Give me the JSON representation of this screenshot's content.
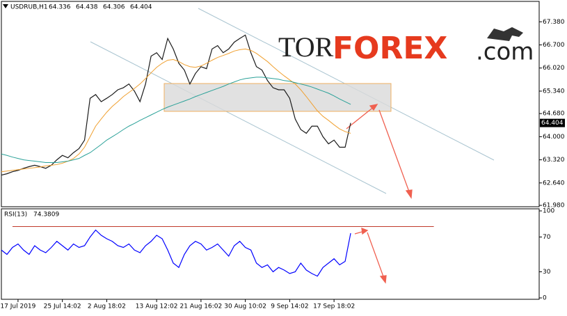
{
  "chart_data": [
    {
      "type": "line",
      "title": "USDRUB,H1",
      "header_values": [
        64.336,
        64.438,
        64.306,
        64.404
      ],
      "logo": [
        "TOR",
        "FOREX",
        ".com"
      ],
      "xlim": [
        0,
        97
      ],
      "ylim": [
        61.94,
        67.98
      ],
      "yticks": [
        {
          "value": 67.38,
          "label": "67.380"
        },
        {
          "value": 66.7,
          "label": "66.700"
        },
        {
          "value": 66.02,
          "label": "66.020"
        },
        {
          "value": 65.34,
          "label": "65.340"
        },
        {
          "value": 64.68,
          "label": "64.680"
        },
        {
          "value": 64.0,
          "label": "64.000"
        },
        {
          "value": 63.32,
          "label": "63.320"
        },
        {
          "value": 62.64,
          "label": "62.640"
        },
        {
          "value": 61.98,
          "label": "61.980"
        }
      ],
      "series": [
        {
          "color": "#1a1a1a",
          "values": [
            62.87,
            62.91,
            62.97,
            63.01,
            63.07,
            63.12,
            63.16,
            63.12,
            63.07,
            63.16,
            63.32,
            63.45,
            63.38,
            63.53,
            63.65,
            63.9,
            65.13,
            65.24,
            65.03,
            65.13,
            65.24,
            65.38,
            65.44,
            65.55,
            65.34,
            65.03,
            65.55,
            66.37,
            66.47,
            66.27,
            66.89,
            66.58,
            66.16,
            65.96,
            65.55,
            65.86,
            66.06,
            66.0,
            66.58,
            66.68,
            66.47,
            66.58,
            66.78,
            66.89,
            66.99,
            66.47,
            66.06,
            65.96,
            65.65,
            65.44,
            65.38,
            65.38,
            65.13,
            64.52,
            64.21,
            64.1,
            64.31,
            64.31,
            64.0,
            63.79,
            63.9,
            63.69,
            63.69,
            64.404
          ]
        },
        {
          "color": "#f0a030",
          "values": [
            62.97,
            62.99,
            63.01,
            63.03,
            63.05,
            63.07,
            63.09,
            63.11,
            63.14,
            63.16,
            63.18,
            63.22,
            63.28,
            63.36,
            63.49,
            63.69,
            64.0,
            64.31,
            64.52,
            64.72,
            64.89,
            65.03,
            65.18,
            65.3,
            65.42,
            65.55,
            65.71,
            65.88,
            66.04,
            66.16,
            66.25,
            66.27,
            66.21,
            66.12,
            66.06,
            66.04,
            66.08,
            66.16,
            66.25,
            66.33,
            66.39,
            66.45,
            66.52,
            66.56,
            66.58,
            66.54,
            66.45,
            66.33,
            66.21,
            66.06,
            65.92,
            65.79,
            65.67,
            65.55,
            65.38,
            65.18,
            64.97,
            64.76,
            64.6,
            64.48,
            64.35,
            64.23,
            64.15,
            64.1
          ]
        },
        {
          "color": "#2aa198",
          "values": [
            63.49,
            63.45,
            63.4,
            63.36,
            63.32,
            63.3,
            63.28,
            63.26,
            63.24,
            63.24,
            63.24,
            63.26,
            63.28,
            63.32,
            63.36,
            63.45,
            63.53,
            63.65,
            63.77,
            63.9,
            64.0,
            64.1,
            64.21,
            64.31,
            64.39,
            64.48,
            64.56,
            64.64,
            64.72,
            64.8,
            64.87,
            64.93,
            64.99,
            65.05,
            65.11,
            65.18,
            65.24,
            65.3,
            65.36,
            65.42,
            65.48,
            65.55,
            65.61,
            65.67,
            65.71,
            65.73,
            65.75,
            65.75,
            65.73,
            65.71,
            65.69,
            65.65,
            65.63,
            65.59,
            65.55,
            65.51,
            65.46,
            65.4,
            65.34,
            65.28,
            65.2,
            65.11,
            65.03,
            64.95
          ]
        }
      ]
    },
    {
      "type": "line",
      "title": "RSI(13)",
      "current": 74.3809,
      "level": 82,
      "xlim": [
        0,
        97
      ],
      "ylim": [
        0,
        100
      ],
      "yticks": [
        100,
        70,
        30,
        0
      ],
      "xticks": [
        {
          "value": 3,
          "label": "17 Jul 2019"
        },
        {
          "value": 11,
          "label": "25 Jul 14:02"
        },
        {
          "value": 19,
          "label": "2 Aug 18:02"
        },
        {
          "value": 28,
          "label": "13 Aug 12:02"
        },
        {
          "value": 36,
          "label": "21 Aug 16:02"
        },
        {
          "value": 44,
          "label": "30 Aug 10:02"
        },
        {
          "value": 52,
          "label": "9 Sep 14:02"
        },
        {
          "value": 60,
          "label": "17 Sep 18:02"
        }
      ],
      "series": [
        {
          "color": "#0000ff",
          "values": [
            55,
            50,
            58,
            62,
            55,
            50,
            60,
            55,
            52,
            58,
            65,
            60,
            55,
            62,
            58,
            60,
            70,
            78,
            72,
            68,
            65,
            60,
            58,
            62,
            55,
            52,
            60,
            65,
            72,
            68,
            55,
            40,
            35,
            50,
            60,
            65,
            62,
            55,
            58,
            62,
            55,
            48,
            60,
            65,
            58,
            55,
            40,
            35,
            38,
            30,
            35,
            32,
            28,
            30,
            40,
            32,
            28,
            25,
            35,
            40,
            45,
            38,
            42,
            74.3809
          ]
        }
      ]
    }
  ]
}
